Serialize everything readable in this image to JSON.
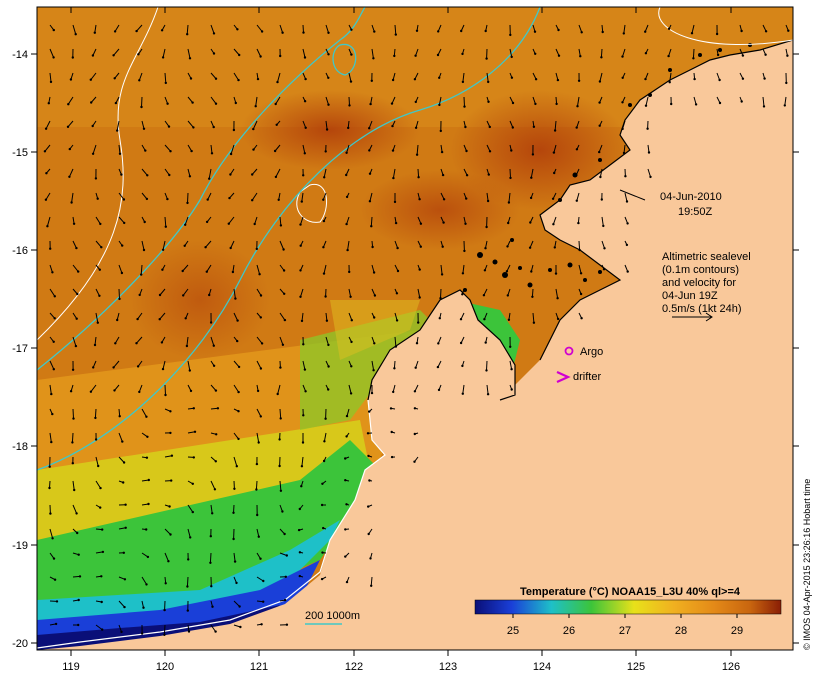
{
  "map": {
    "date": "04-Jun-2010",
    "time": "19:50Z",
    "legend_lines": [
      "Altimetric sealevel",
      "(0.1m contours)",
      "and velocity for",
      "04-Jun 19Z",
      "0.5m/s (1kt 24h)"
    ],
    "markers": {
      "argo_label": "Argo",
      "drifter_label": "drifter"
    },
    "depth_legend": "200  1000m",
    "credit": "© IMOS 04-Apr-2015 23:26:16 Hobart time",
    "colorbar": {
      "title": "Temperature (°C) NOAA15_L3U 40% ql>=4",
      "ticks": [
        "25",
        "26",
        "27",
        "28",
        "29"
      ]
    },
    "x_ticks": [
      "119",
      "120",
      "121",
      "122",
      "123",
      "124",
      "125",
      "126"
    ],
    "y_ticks": [
      "-14",
      "-15",
      "-16",
      "-17",
      "-18",
      "-19",
      "-20"
    ],
    "colors": {
      "land": "#f9c89a",
      "sst_warm": "#c8650f",
      "sst_hot": "#b2400a",
      "sst_mid": "#e49a1b",
      "sst_yellow": "#e8e11a",
      "sst_green": "#3cc43a",
      "sst_cyan": "#1ec0c8",
      "sst_blue": "#1a3fd8",
      "sst_navy": "#0a0f78",
      "contour_cyan": "#40c8c8",
      "argo_magenta": "#d000d0"
    }
  }
}
